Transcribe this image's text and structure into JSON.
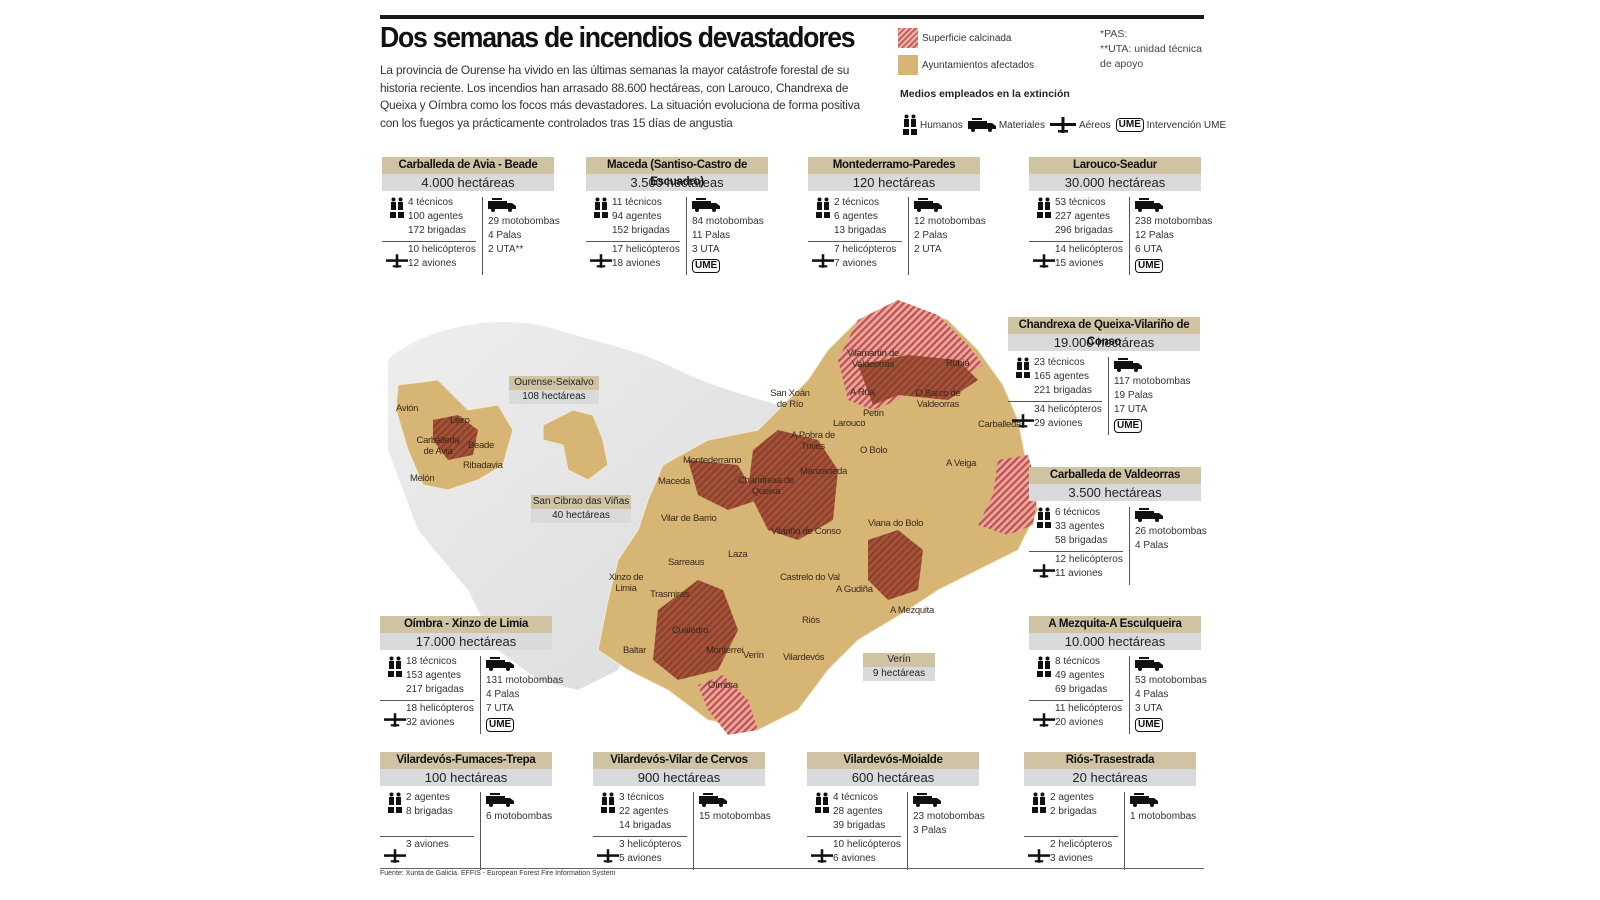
{
  "header": {
    "title": "Dos semanas de incendios devastadores",
    "intro": "La provincia de Ourense ha vivido en las últimas semanas la mayor catástrofe forestal de su historia reciente. Los incendios han arrasado 88.600 hectáreas, con Larouco, Chandrexa de Queixa y Oímbra como los focos más devastadores. La situación evoluciona de forma positiva con los fuegos ya prácticamente controlados tras 15 días de angustia"
  },
  "legend": {
    "burned_label": "Superficie calcinada",
    "municipalities_label": "Ayuntamientos afectados",
    "burned_color": "#c9605c",
    "municipalities_color": "#d7b574",
    "note_pas": "*PAS:",
    "note_uta": "**UTA: unidad técnica de apoyo",
    "medios_title": "Medios empleados en la extinción",
    "medios": [
      {
        "icon": "people-icon",
        "label": "Humanos"
      },
      {
        "icon": "fire-truck-icon",
        "label": "Materiales"
      },
      {
        "icon": "plane-icon",
        "label": "Aéreos"
      },
      {
        "icon": "ume-badge",
        "badge": "UME",
        "label": "Intervención UME"
      }
    ]
  },
  "cards": [
    {
      "name": "Carballeda de Avia - Beade",
      "area": "4.000 hectáreas",
      "humans": [
        "4 técnicos",
        "100 agentes",
        "172 brigadas"
      ],
      "air": [
        "10 helicópteros",
        "12 aviones"
      ],
      "materials": [
        "29 motobombas",
        "4 Palas",
        "2 UTA**"
      ],
      "ume": false
    },
    {
      "name": "Maceda (Santiso-Castro de Escuadro)",
      "area": "3.500 hectáreas",
      "humans": [
        "11 técnicos",
        "94 agentes",
        "152 brigadas"
      ],
      "air": [
        "17 helicópteros",
        "18 aviones"
      ],
      "materials": [
        "84 motobombas",
        "11 Palas",
        "3 UTA"
      ],
      "ume": true
    },
    {
      "name": "Montederramo-Paredes",
      "area": "120 hectáreas",
      "humans": [
        "2 técnicos",
        "6 agentes",
        "13 brigadas"
      ],
      "air": [
        "7 helicópteros",
        "7 aviones"
      ],
      "materials": [
        "12 motobombas",
        "2 Palas",
        "2 UTA"
      ],
      "ume": false
    },
    {
      "name": "Larouco-Seadur",
      "area": "30.000 hectáreas",
      "humans": [
        "53 técnicos",
        "227 agentes",
        "296 brigadas"
      ],
      "air": [
        "14 helicópteros",
        "15 aviones"
      ],
      "materials": [
        "238 motobombas",
        "12 Palas",
        "6 UTA"
      ],
      "ume": true
    },
    {
      "name": "Chandrexa de Queixa-Vilariño de Conso",
      "area": "19.000 hectáreas",
      "humans": [
        "23 técnicos",
        "165 agentes",
        "221 brigadas"
      ],
      "air": [
        "34 helicópteros",
        "29 aviones"
      ],
      "materials": [
        "117 motobombas",
        "19 Palas",
        "17 UTA"
      ],
      "ume": true
    },
    {
      "name": "Carballeda de Valdeorras",
      "area": "3.500 hectáreas",
      "humans": [
        "6 técnicos",
        "33 agentes",
        "58 brigadas"
      ],
      "air": [
        "12 helicópteros",
        "11 aviones"
      ],
      "materials": [
        "26 motobombas",
        "4 Palas"
      ],
      "ume": false
    },
    {
      "name": "Oímbra - Xinzo de Limia",
      "area": "17.000 hectáreas",
      "humans": [
        "18 técnicos",
        "153 agentes",
        "217 brigadas"
      ],
      "air": [
        "18 helicópteros",
        "32 aviones"
      ],
      "materials": [
        "131 motobombas",
        "4 Palas",
        "7 UTA"
      ],
      "ume": true
    },
    {
      "name": "A Mezquita-A Esculqueira",
      "area": "10.000 hectáreas",
      "humans": [
        "8 técnicos",
        "49 agentes",
        "69 brigadas"
      ],
      "air": [
        "11 helicópteros",
        "20 aviones"
      ],
      "materials": [
        "53 motobombas",
        "4 Palas",
        "3 UTA"
      ],
      "ume": true
    },
    {
      "name": "Vilardevós-Fumaces-Trepa",
      "area": "100 hectáreas",
      "humans": [
        "2 agentes",
        "8 brigadas"
      ],
      "air": [
        "3 aviones"
      ],
      "materials": [
        "6 motobombas"
      ],
      "ume": false
    },
    {
      "name": "Vilardevós-Vilar de Cervos",
      "area": "900 hectáreas",
      "humans": [
        "3 técnicos",
        "22 agentes",
        "14 brigadas"
      ],
      "air": [
        "3 helicópteros",
        "5 aviones"
      ],
      "materials": [
        "15 motobombas"
      ],
      "ume": false
    },
    {
      "name": "Vilardevós-Moialde",
      "area": "600 hectáreas",
      "humans": [
        "4 técnicos",
        "28 agentes",
        "39 brigadas"
      ],
      "air": [
        "10 helicópteros",
        "6 aviones"
      ],
      "materials": [
        "23 motobombas",
        "3 Palas"
      ],
      "ume": false
    },
    {
      "name": "Riós-Trasestrada",
      "area": "20 hectáreas",
      "humans": [
        "2 agentes",
        "2 brigadas"
      ],
      "air": [
        "2 helicópteros",
        "3 aviones"
      ],
      "materials": [
        "1 motobombas"
      ],
      "ume": false
    }
  ],
  "map": {
    "boxes": [
      {
        "name": "Ourense-Seixalvo",
        "area": "108 hectáreas"
      },
      {
        "name": "San Cibrao das Viñas",
        "area": "40 hectáreas"
      },
      {
        "name": "Verín",
        "area": "9 hectáreas"
      }
    ],
    "places": [
      "Avión",
      "Leiro",
      "Carballeda de Avia",
      "Beade",
      "Ribadavia",
      "Melón",
      "Vilamartín de Valdeorras",
      "Rubiá",
      "A Rúa",
      "O Barco de Valdeorras",
      "Petín",
      "San Xoán de Río",
      "Larouco",
      "Carballeda",
      "A Pobra de Trives",
      "O Bolo",
      "Montederramo",
      "Manzaneda",
      "Maceda",
      "Chandrexa de Queixa",
      "A Veiga",
      "Vilar de Barrio",
      "Vilariño de Conso",
      "Viana do Bolo",
      "Laza",
      "Sarreaus",
      "Xinzo de Limia",
      "Castrelo do Val",
      "A Gudiña",
      "Trasmiras",
      "A Mezquita",
      "Riós",
      "Cualedro",
      "Baltar",
      "Monterrei",
      "Verín",
      "Vilardevós",
      "Oímbra"
    ]
  },
  "footer": {
    "source": "Fuente: Xunta de Galicia. EFFIS - European Forest Fire Information System"
  }
}
